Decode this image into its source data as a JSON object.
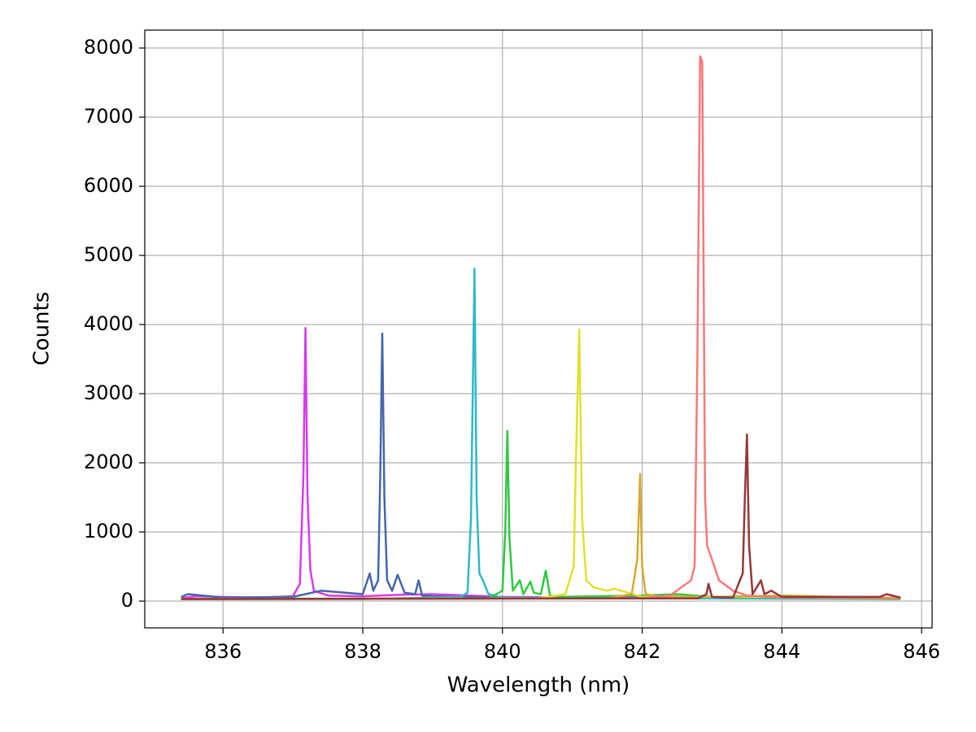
{
  "chart_data": {
    "type": "line",
    "x_label": "Wavelength (nm)",
    "y_label": "Counts",
    "xlim": [
      834.88,
      846.15
    ],
    "ylim": [
      -388,
      8259
    ],
    "xticks": [
      836,
      838,
      840,
      842,
      844,
      846
    ],
    "yticks": [
      0,
      1000,
      2000,
      3000,
      4000,
      5000,
      6000,
      7000,
      8000
    ],
    "grid": true,
    "series": [
      {
        "color": "#d63af0",
        "x": [
          835.4,
          835.6,
          836,
          836.5,
          837,
          837.1,
          837.15,
          837.18,
          837.21,
          837.25,
          837.3,
          837.5,
          838,
          838.5,
          839,
          840,
          842,
          844,
          845.7
        ],
        "values": [
          40,
          70,
          60,
          50,
          70,
          250,
          1800,
          3950,
          1500,
          450,
          150,
          80,
          70,
          90,
          100,
          60,
          50,
          40,
          40
        ]
      },
      {
        "color": "#4466aa",
        "x": [
          835.4,
          835.5,
          836,
          837,
          837.4,
          838,
          838.1,
          838.15,
          838.22,
          838.25,
          838.28,
          838.31,
          838.35,
          838.42,
          838.5,
          838.6,
          838.75,
          838.8,
          838.85,
          839,
          840,
          842,
          845.7
        ],
        "values": [
          60,
          100,
          50,
          60,
          150,
          100,
          400,
          150,
          300,
          1800,
          3870,
          1500,
          300,
          150,
          380,
          120,
          100,
          300,
          80,
          70,
          50,
          40,
          40
        ]
      },
      {
        "color": "#30b8c8",
        "x": [
          835.4,
          838,
          839.4,
          839.5,
          839.55,
          839.6,
          839.63,
          839.67,
          839.72,
          839.8,
          840,
          842,
          845.7
        ],
        "values": [
          30,
          30,
          60,
          120,
          1200,
          4810,
          1500,
          400,
          300,
          100,
          50,
          40,
          30
        ]
      },
      {
        "color": "#30c840",
        "x": [
          835.4,
          839.8,
          840,
          840.04,
          840.07,
          840.1,
          840.15,
          840.25,
          840.3,
          840.4,
          840.45,
          840.55,
          840.62,
          840.68,
          840.8,
          842,
          842.5,
          843,
          845.7
        ],
        "values": [
          30,
          40,
          150,
          1000,
          2460,
          900,
          150,
          300,
          100,
          280,
          120,
          100,
          440,
          80,
          60,
          80,
          100,
          60,
          30
        ]
      },
      {
        "color": "#e0e030",
        "x": [
          835.4,
          840.5,
          840.9,
          841.02,
          841.05,
          841.1,
          841.14,
          841.2,
          841.3,
          841.5,
          841.6,
          841.8,
          842,
          844,
          845.7
        ],
        "values": [
          30,
          40,
          100,
          500,
          2000,
          3930,
          1200,
          300,
          200,
          150,
          180,
          120,
          60,
          60,
          50
        ]
      },
      {
        "color": "#d4aa30",
        "x": [
          835.4,
          841.5,
          841.85,
          841.93,
          841.97,
          842.0,
          842.05,
          842.2,
          843,
          844,
          845.7
        ],
        "values": [
          30,
          40,
          100,
          600,
          1840,
          500,
          100,
          70,
          60,
          80,
          40
        ]
      },
      {
        "color": "#f87878",
        "x": [
          835.4,
          842,
          842.4,
          842.7,
          842.75,
          842.79,
          842.83,
          842.86,
          842.9,
          842.93,
          843,
          843.1,
          843.3,
          843.5,
          844,
          845.7
        ],
        "values": [
          30,
          40,
          80,
          300,
          500,
          3500,
          7880,
          7800,
          1500,
          800,
          600,
          300,
          150,
          80,
          50,
          40
        ]
      },
      {
        "color": "#943838",
        "x": [
          835.4,
          842.8,
          842.92,
          842.95,
          843,
          843.3,
          843.44,
          843.47,
          843.5,
          843.53,
          843.58,
          843.7,
          843.75,
          843.85,
          844,
          845.4,
          845.5,
          845.7
        ],
        "values": [
          30,
          40,
          100,
          250,
          60,
          50,
          400,
          1500,
          2410,
          800,
          100,
          300,
          100,
          150,
          60,
          60,
          100,
          50
        ]
      }
    ]
  }
}
